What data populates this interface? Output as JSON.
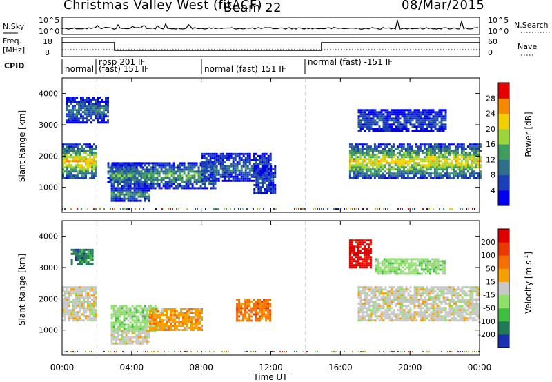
{
  "header": {
    "station": "Christmas Valley West (fitACF)",
    "beam": "Beam 22",
    "date": "08/Mar/2015"
  },
  "panels": {
    "noise": {
      "left_label_top": "N.Sky",
      "left_ticks": [
        "10^5",
        "10^0"
      ],
      "right_ticks": [
        "10^5",
        "10^0"
      ],
      "right_label": "N.Search"
    },
    "freq": {
      "left_label_line1": "Freq.",
      "left_label_line2": "[MHz]",
      "left_ticks": [
        "18",
        "8"
      ],
      "right_ticks": [
        "60",
        "0"
      ],
      "right_label": "Nave"
    },
    "cpid": {
      "label": "CPID",
      "segments": [
        "normal",
        "rbsp 201 IF",
        "(fast) 151 IF",
        "normal (fast) 151 IF",
        "normal (fast) -151 IF"
      ]
    }
  },
  "chart_data": [
    {
      "type": "heatmap",
      "name": "power",
      "ylabel": "Slant Range [km]",
      "ylim": [
        200,
        4500
      ],
      "yticks": [
        "4000",
        "3000",
        "2000",
        "1000"
      ],
      "xlim_hours": [
        0,
        24
      ],
      "colorbar": {
        "label": "Power [dB]",
        "ticks": [
          "28",
          "24",
          "20",
          "16",
          "12",
          "8",
          "4"
        ],
        "colors": [
          "#0000ee",
          "#1a3fb8",
          "#2f6f8a",
          "#3f9e5f",
          "#9bd53a",
          "#f0d000",
          "#f58a00",
          "#e60000"
        ]
      },
      "regions": [
        {
          "t0": 0.0,
          "t1": 2.0,
          "r0": 1300,
          "r1": 2400,
          "level": 0.75
        },
        {
          "t0": 0.2,
          "t1": 2.6,
          "r0": 3100,
          "r1": 3900,
          "level": 0.35
        },
        {
          "t0": 2.6,
          "t1": 4.6,
          "r0": 1150,
          "r1": 1800,
          "level": 0.3
        },
        {
          "t0": 2.8,
          "t1": 8.8,
          "r0": 1000,
          "r1": 1800,
          "level": 0.45
        },
        {
          "t0": 2.8,
          "t1": 5.0,
          "r0": 600,
          "r1": 1000,
          "level": 0.4
        },
        {
          "t0": 8.0,
          "t1": 12.0,
          "r0": 1200,
          "r1": 2100,
          "level": 0.3
        },
        {
          "t0": 11.0,
          "t1": 12.3,
          "r0": 800,
          "r1": 1700,
          "level": 0.25
        },
        {
          "t0": 16.5,
          "t1": 24.0,
          "r0": 1300,
          "r1": 2400,
          "level": 0.7
        },
        {
          "t0": 17.0,
          "t1": 22.0,
          "r0": 2800,
          "r1": 3500,
          "level": 0.25
        }
      ]
    },
    {
      "type": "heatmap",
      "name": "velocity",
      "ylabel": "Slant Range [km]",
      "ylim": [
        200,
        4500
      ],
      "yticks": [
        "4000",
        "3000",
        "2000",
        "1000"
      ],
      "xlim_hours": [
        0,
        24
      ],
      "xticks": [
        "00:00",
        "04:00",
        "08:00",
        "12:00",
        "16:00",
        "20:00",
        "00:00"
      ],
      "xlabel": "Time UT",
      "colorbar": {
        "label": "Velocity [m s",
        "label_sup": "-1",
        "label_end": "]",
        "ticks": [
          "200",
          "100",
          "50",
          "15",
          "-15",
          "-50",
          "-100",
          "-200"
        ],
        "colors": [
          "#1a2fb0",
          "#1f7a55",
          "#3fbf3f",
          "#8fe06a",
          "#c8c8c8",
          "#f5a000",
          "#f57000",
          "#ea3a00",
          "#e00000"
        ]
      },
      "regions": [
        {
          "t0": 0.0,
          "t1": 2.0,
          "r0": 1300,
          "r1": 2400,
          "level": 4
        },
        {
          "t0": 0.5,
          "t1": 1.8,
          "r0": 3100,
          "r1": 3600,
          "level": 1
        },
        {
          "t0": 2.8,
          "t1": 5.5,
          "r0": 1000,
          "r1": 1800,
          "level": 3
        },
        {
          "t0": 5.0,
          "t1": 8.0,
          "r0": 1000,
          "r1": 1700,
          "level": 5
        },
        {
          "t0": 2.8,
          "t1": 5.0,
          "r0": 600,
          "r1": 1000,
          "level": 4
        },
        {
          "t0": 10.0,
          "t1": 12.0,
          "r0": 1300,
          "r1": 2000,
          "level": 6
        },
        {
          "t0": 16.5,
          "t1": 17.8,
          "r0": 3000,
          "r1": 3900,
          "level": 8
        },
        {
          "t0": 17.0,
          "t1": 24.0,
          "r0": 1300,
          "r1": 2400,
          "level": 4
        },
        {
          "t0": 18.0,
          "t1": 22.0,
          "r0": 2800,
          "r1": 3300,
          "level": 3
        }
      ]
    }
  ]
}
